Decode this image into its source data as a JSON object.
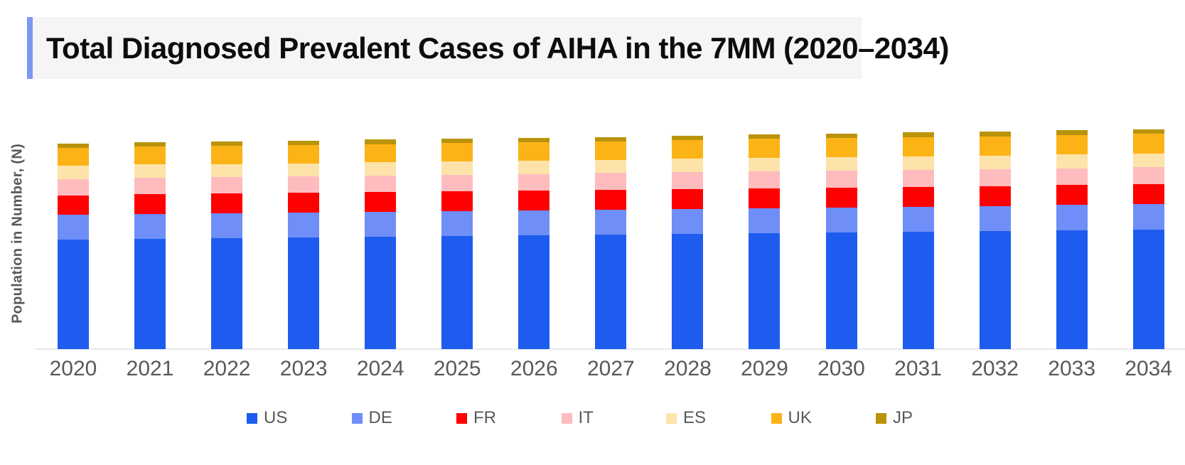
{
  "title": {
    "text": "Total Diagnosed Prevalent Cases of AIHA in the 7MM (2020–2034)"
  },
  "y_axis": {
    "label": "Population in Number, (N)",
    "tick_labels": "none shown"
  },
  "colors": {
    "accent_bar": "#7b97f3",
    "title_panel_bg": "#f5f5f6",
    "axis_text": "#595959",
    "axis_line": "#e9e9e9"
  },
  "legend": [
    {
      "label": "US",
      "color": "#1d5cee"
    },
    {
      "label": "DE",
      "color": "#6f8ef8"
    },
    {
      "label": "FR",
      "color": "#fe0000"
    },
    {
      "label": "IT",
      "color": "#ffbcbf"
    },
    {
      "label": "ES",
      "color": "#fde3aa"
    },
    {
      "label": "UK",
      "color": "#fcb316"
    },
    {
      "label": "JP",
      "color": "#b9930a"
    }
  ],
  "chart_data": {
    "type": "bar",
    "stacked": true,
    "title": "Total Diagnosed Prevalent Cases of AIHA in the 7MM (2020–2034)",
    "xlabel": "",
    "ylabel": "Population in Number, (N)",
    "legend_position": "bottom",
    "grid": false,
    "y_axis_unlabeled": true,
    "value_units": "relative units (y axis shows no numbers; values are pixel-proportional estimates of segment heights)",
    "categories": [
      "2020",
      "2021",
      "2022",
      "2023",
      "2024",
      "2025",
      "2026",
      "2027",
      "2028",
      "2029",
      "2030",
      "2031",
      "2032",
      "2033",
      "2034"
    ],
    "series": [
      {
        "name": "US",
        "color": "#1d5cee",
        "values": [
          154.5,
          155.5,
          156.5,
          157.5,
          158.5,
          159.5,
          160.5,
          161.5,
          162.5,
          163.5,
          164.5,
          165.5,
          166.5,
          167.5,
          168.5
        ]
      },
      {
        "name": "DE",
        "color": "#6f8ef8",
        "values": [
          34.5,
          34.5,
          34.5,
          34.5,
          34.5,
          34.5,
          34.5,
          34.5,
          34.5,
          35,
          35,
          35,
          35,
          35.5,
          35.5
        ]
      },
      {
        "name": "FR",
        "color": "#fe0000",
        "values": [
          27.5,
          28,
          28,
          28,
          28,
          28,
          28,
          28,
          28,
          28,
          28,
          28,
          28,
          28,
          28.5
        ]
      },
      {
        "name": "IT",
        "color": "#ffbcbf",
        "values": [
          22.5,
          23,
          23,
          23,
          23.5,
          23.5,
          23.5,
          24,
          24,
          24,
          24,
          24,
          24,
          23.5,
          24
        ]
      },
      {
        "name": "ES",
        "color": "#fde3aa",
        "values": [
          19,
          19,
          18.5,
          18.5,
          18.5,
          18.5,
          18.5,
          18.5,
          19,
          19,
          19,
          19,
          19,
          19.5,
          19
        ]
      },
      {
        "name": "UK",
        "color": "#fcb316",
        "values": [
          25.5,
          25.5,
          25.5,
          25.5,
          25.5,
          26,
          26,
          26,
          26,
          26.5,
          26.5,
          27,
          27,
          27.5,
          27.5
        ]
      },
      {
        "name": "JP",
        "color": "#b9930a",
        "values": [
          6,
          6,
          6.5,
          6.5,
          6.5,
          6.5,
          6.5,
          6,
          6.5,
          6.5,
          6.5,
          6.5,
          6.5,
          6.5,
          6
        ]
      }
    ],
    "totals_relative": [
      289.5,
      291.5,
      292.5,
      293.5,
      295,
      296.5,
      298,
      298.5,
      300.5,
      302.5,
      303.5,
      305,
      306,
      308,
      309
    ]
  }
}
